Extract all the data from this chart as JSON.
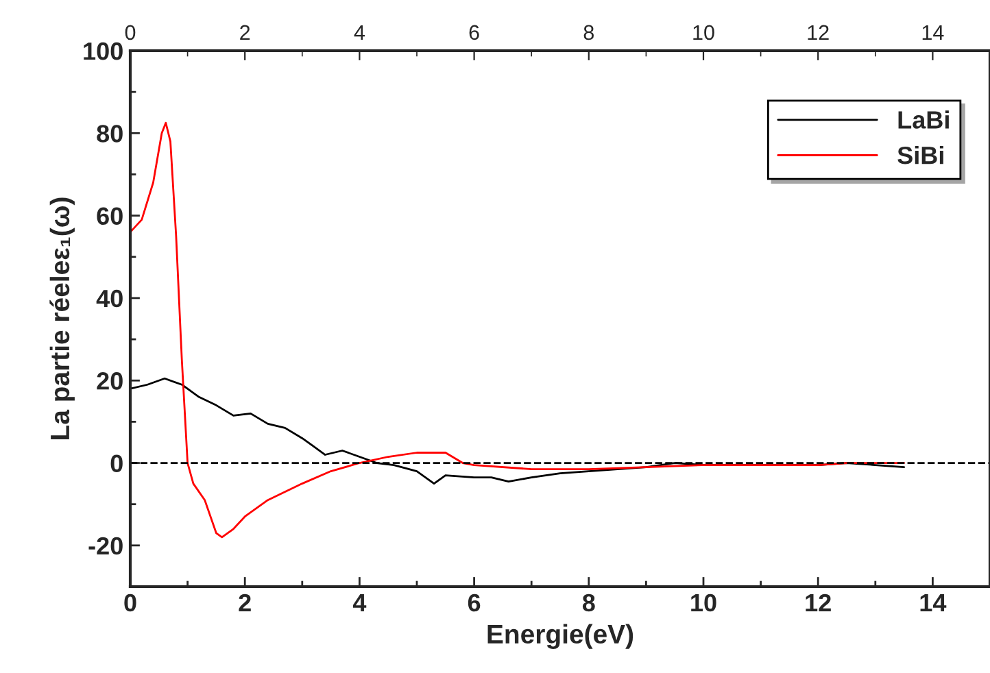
{
  "chart_data": {
    "type": "line",
    "xlabel": "Energie(eV)",
    "ylabel": "La partie réeleε₁(ω)",
    "xlim": [
      0,
      15
    ],
    "xticks": [
      0,
      2,
      4,
      6,
      8,
      10,
      12,
      14
    ],
    "x2lim": [
      0,
      15
    ],
    "x2ticks": [
      0,
      2,
      4,
      6,
      8,
      10,
      12,
      14
    ],
    "ylim": [
      -30,
      100
    ],
    "yticks": [
      -20,
      0,
      20,
      40,
      60,
      80,
      100
    ],
    "grid": false,
    "legend": "top right",
    "marker": "none",
    "line_style": "solid",
    "ref_lines": [
      {
        "axis": "y",
        "value": 0,
        "color": "#000000",
        "line_style": "dashed"
      }
    ],
    "series": [
      {
        "name": "LaBi",
        "color": "#000000",
        "x": [
          0,
          0.3,
          0.6,
          0.9,
          1.2,
          1.5,
          1.8,
          2.1,
          2.4,
          2.7,
          3.0,
          3.2,
          3.4,
          3.7,
          4.0,
          4.3,
          4.6,
          5.0,
          5.3,
          5.5,
          6.0,
          6.3,
          6.6,
          7.0,
          7.5,
          8.0,
          8.5,
          9.0,
          9.5,
          10,
          11,
          12,
          12.5,
          13,
          13.5
        ],
        "values": [
          18,
          19,
          20.5,
          19,
          16,
          14,
          11.5,
          12,
          9.5,
          8.5,
          6,
          4,
          2,
          3,
          1.5,
          0,
          -0.5,
          -2,
          -5,
          -3,
          -3.5,
          -3.5,
          -4.5,
          -3.5,
          -2.5,
          -2,
          -1.5,
          -1,
          0,
          -0.5,
          -0.5,
          -0.5,
          0,
          -0.5,
          -1
        ]
      },
      {
        "name": "SiBi",
        "color": "#ff0000",
        "x": [
          0,
          0.2,
          0.4,
          0.55,
          0.62,
          0.7,
          0.8,
          0.9,
          1.0,
          1.1,
          1.3,
          1.5,
          1.6,
          1.8,
          2.0,
          2.4,
          3.0,
          3.5,
          4.0,
          4.5,
          5.0,
          5.5,
          5.8,
          6.0,
          7,
          8,
          9,
          10,
          12,
          12.5,
          13.5
        ],
        "values": [
          56,
          59,
          68,
          80,
          82.5,
          78,
          55,
          25,
          0,
          -5,
          -9,
          -17,
          -18,
          -16,
          -13,
          -9,
          -5,
          -2,
          0,
          1.5,
          2.5,
          2.5,
          0,
          -0.5,
          -1.5,
          -1.5,
          -1,
          -0.5,
          -0.5,
          0,
          0
        ]
      }
    ]
  }
}
